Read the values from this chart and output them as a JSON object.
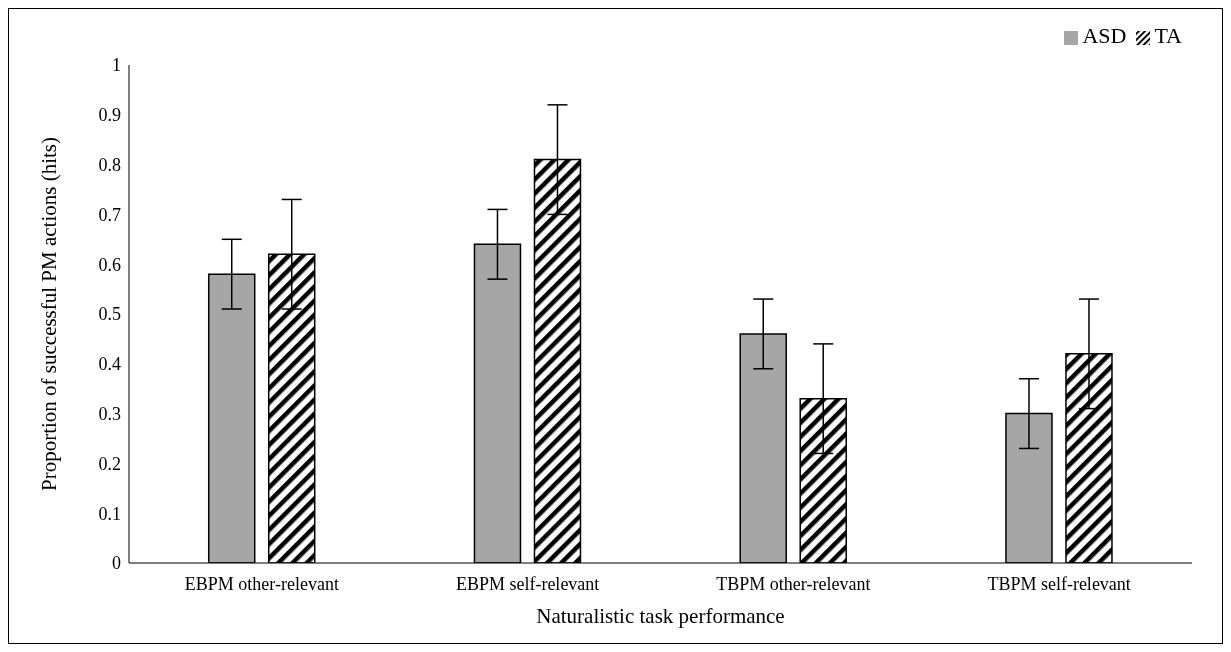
{
  "chart_data": {
    "type": "bar",
    "xlabel": "Naturalistic task performance",
    "ylabel": "Proportion of successful PM actions (hits)",
    "categories": [
      "EBPM other-relevant",
      "EBPM self-relevant",
      "TBPM other-relevant",
      "TBPM self-relevant"
    ],
    "series": [
      {
        "name": "ASD",
        "color": "#a6a6a6",
        "values": [
          0.58,
          0.64,
          0.46,
          0.3
        ],
        "errors": [
          0.07,
          0.07,
          0.07,
          0.07
        ]
      },
      {
        "name": "TA",
        "color": "#000000",
        "values": [
          0.62,
          0.81,
          0.33,
          0.42
        ],
        "errors": [
          0.11,
          0.11,
          0.11,
          0.11
        ]
      }
    ],
    "ylim": [
      0,
      1
    ],
    "yticks": [
      0,
      0.1,
      0.2,
      0.3,
      0.4,
      0.5,
      0.6,
      0.7,
      0.8,
      0.9,
      1
    ],
    "grid": false,
    "legend": "top right"
  }
}
